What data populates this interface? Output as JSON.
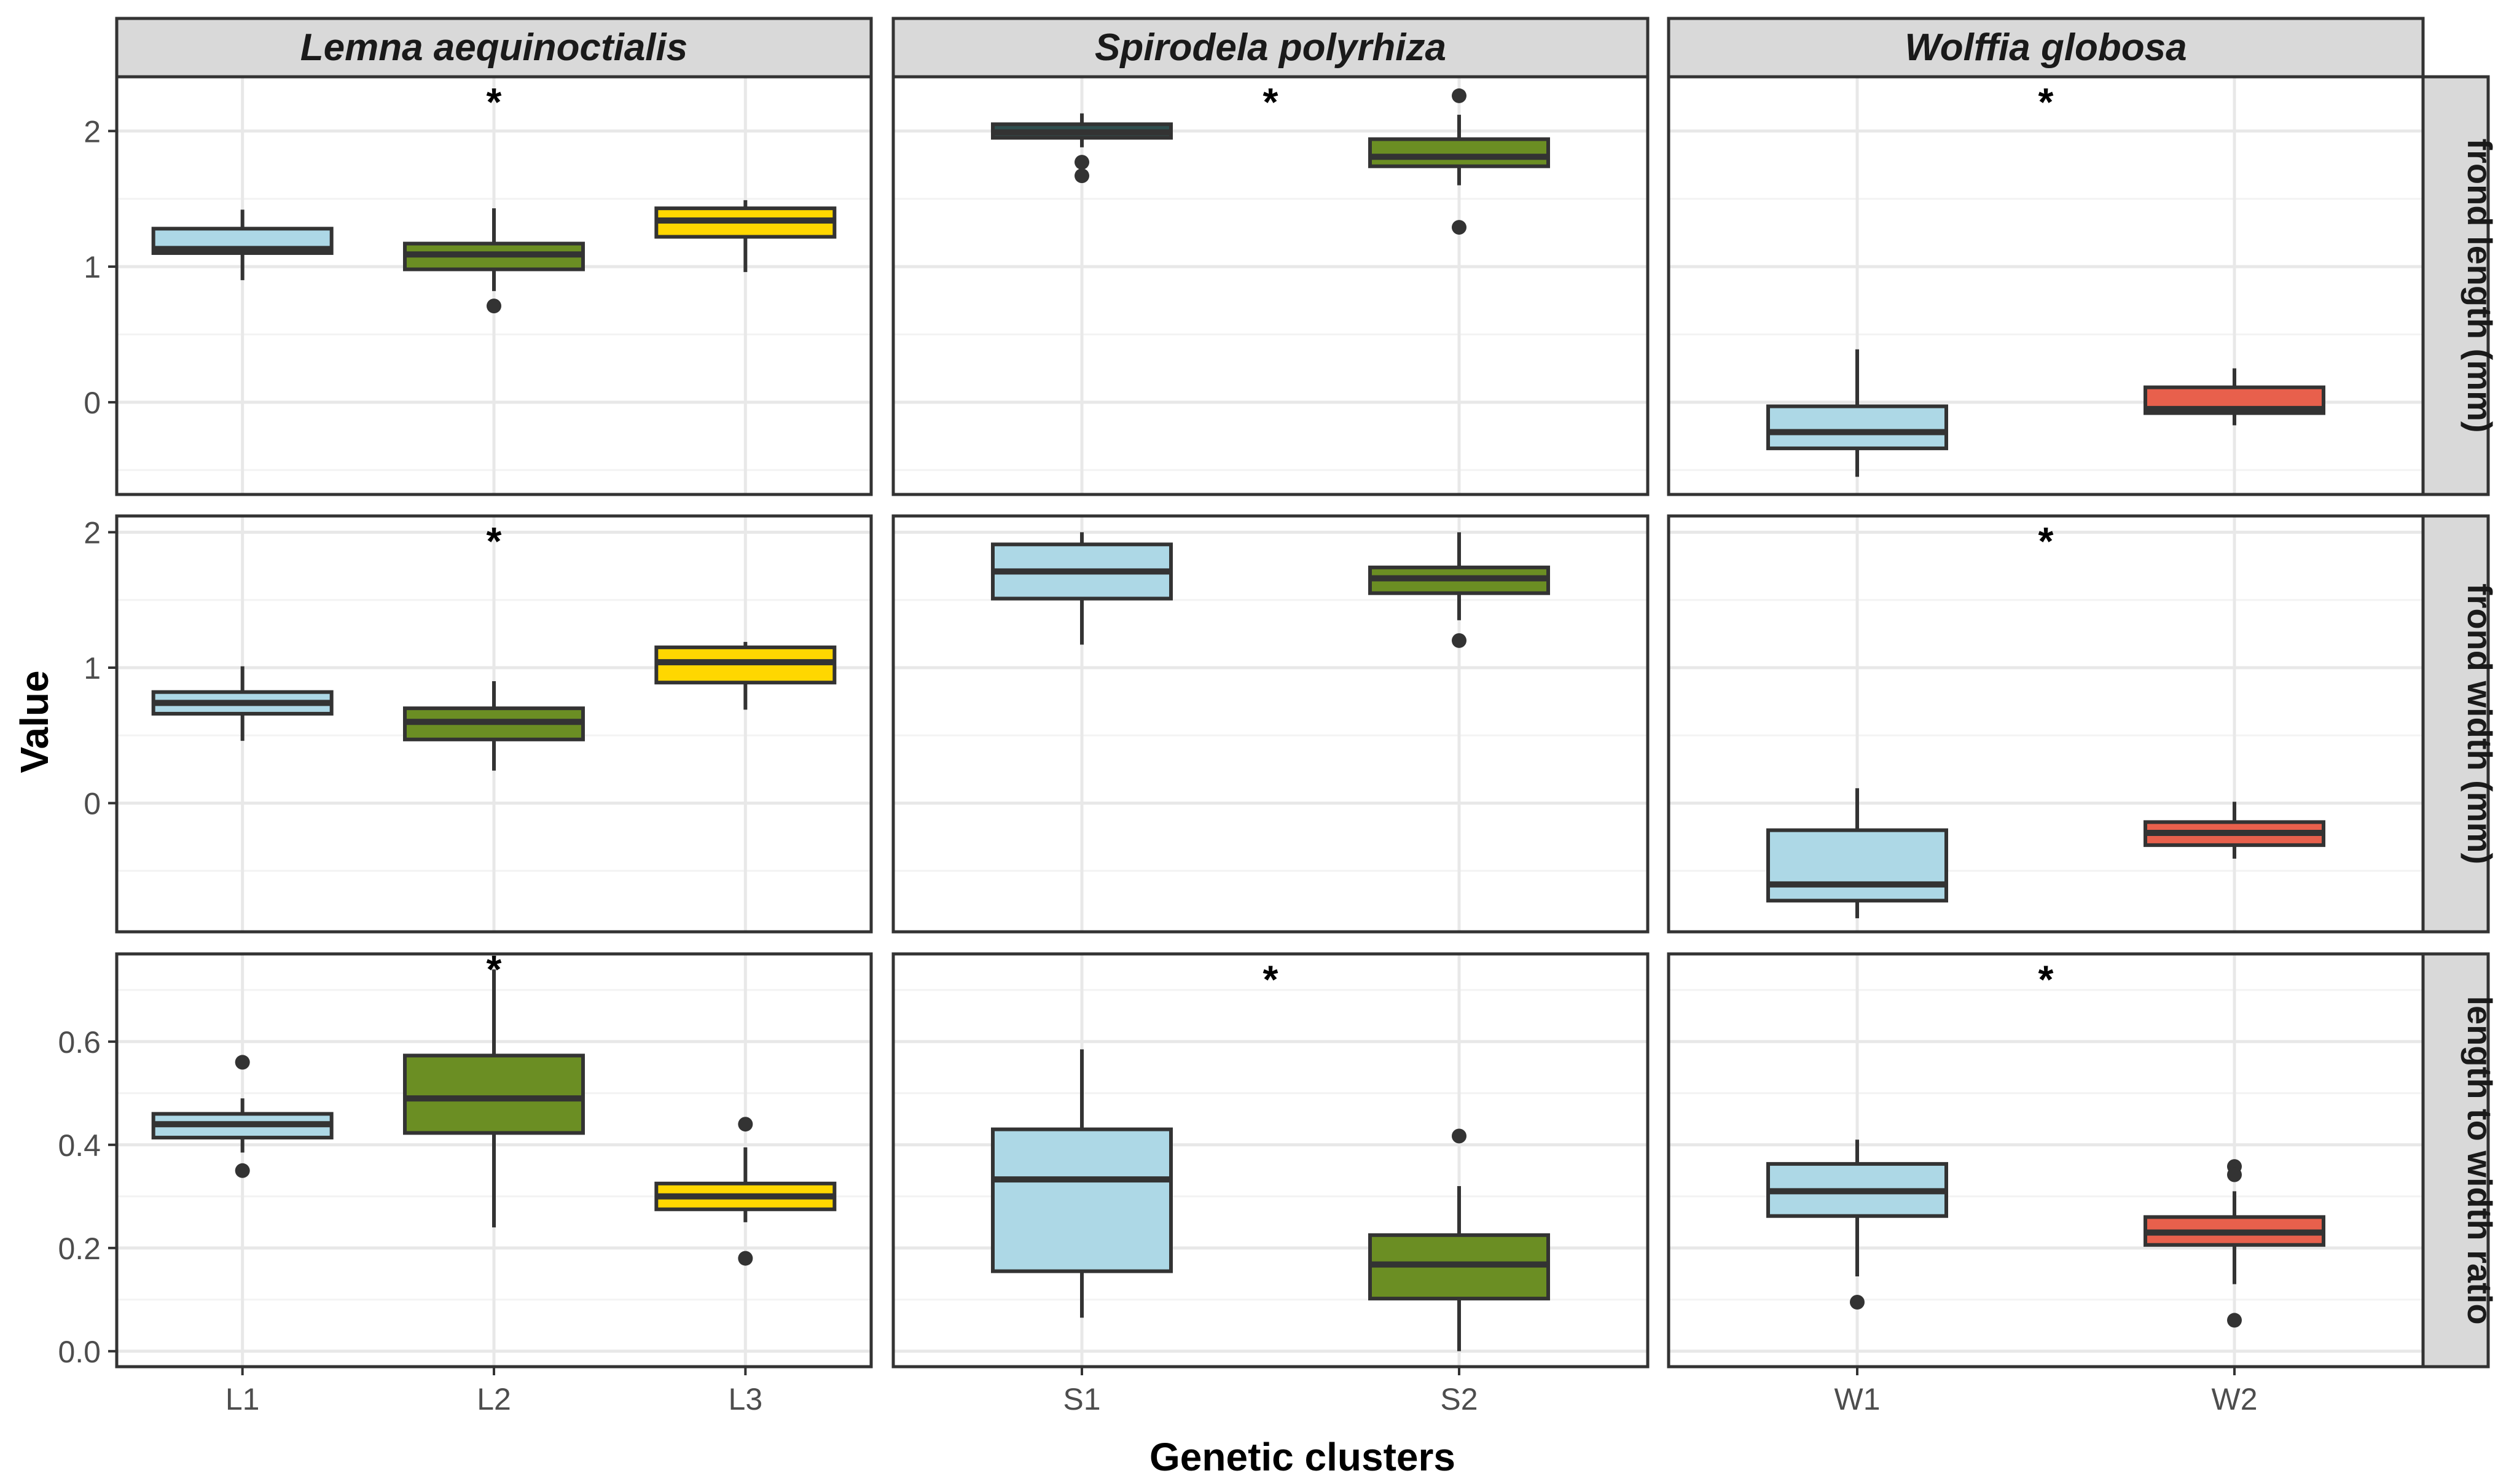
{
  "chart_data": {
    "type": "boxplot",
    "xlabel": "Genetic clusters",
    "ylabel": "Value",
    "species": [
      {
        "name": "Lemna aequinoctialis",
        "clusters": [
          "L1",
          "L2",
          "L3"
        ],
        "significant_marker": "*"
      },
      {
        "name": "Spirodela polyrhiza",
        "clusters": [
          "S1",
          "S2"
        ],
        "significant_marker": "*"
      },
      {
        "name": "Wolffia globosa",
        "clusters": [
          "W1",
          "W2"
        ],
        "significant_marker": "*"
      }
    ],
    "traits": [
      {
        "name": "frond length (mm)",
        "ylim": [
          -0.68,
          2.4
        ],
        "ticks": [
          0,
          1,
          2
        ],
        "tick_labels": [
          "0",
          "1",
          "2"
        ]
      },
      {
        "name": "frond width (mm)",
        "ylim": [
          -0.95,
          2.12
        ],
        "ticks": [
          0,
          1,
          2
        ],
        "tick_labels": [
          "0",
          "1",
          "2"
        ]
      },
      {
        "name": "length to width ratio",
        "ylim": [
          -0.03,
          0.77
        ],
        "ticks": [
          0.0,
          0.2,
          0.4,
          0.6
        ],
        "tick_labels": [
          "0.0",
          "0.2",
          "0.4",
          "0.6"
        ]
      }
    ],
    "colors": {
      "L1": "#add8e6",
      "L2": "#6b8e23",
      "L3": "#ffd700",
      "S1": "#add8e6",
      "S2": "#6b8e23",
      "W1": "#add8e6",
      "W2": "#e8604c",
      "S1_length": "#2f4f4f"
    },
    "panels": [
      {
        "trait": "frond length (mm)",
        "species": "Lemna aequinoctialis",
        "star": "*",
        "star_y": 2.25,
        "boxes": [
          {
            "cluster": "L1",
            "whisker_low": 0.9,
            "q1": 1.1,
            "median": 1.13,
            "q3": 1.28,
            "whisker_high": 1.42,
            "outliers": []
          },
          {
            "cluster": "L2",
            "whisker_low": 0.82,
            "q1": 0.98,
            "median": 1.09,
            "q3": 1.17,
            "whisker_high": 1.43,
            "outliers": [
              0.71
            ]
          },
          {
            "cluster": "L3",
            "whisker_low": 0.96,
            "q1": 1.22,
            "median": 1.34,
            "q3": 1.43,
            "whisker_high": 1.49,
            "outliers": []
          }
        ]
      },
      {
        "trait": "frond length (mm)",
        "species": "Spirodela polyrhiza",
        "star": "*",
        "star_y": 2.25,
        "boxes": [
          {
            "cluster": "S1",
            "whisker_low": 1.88,
            "q1": 1.95,
            "median": 1.99,
            "q3": 2.05,
            "whisker_high": 2.13,
            "outliers": [
              1.77,
              1.67
            ]
          },
          {
            "cluster": "S2",
            "whisker_low": 1.6,
            "q1": 1.74,
            "median": 1.81,
            "q3": 1.94,
            "whisker_high": 2.12,
            "outliers": [
              2.26,
              1.29
            ]
          }
        ]
      },
      {
        "trait": "frond length (mm)",
        "species": "Wolffia globosa",
        "star": "*",
        "star_y": 2.25,
        "boxes": [
          {
            "cluster": "W1",
            "whisker_low": -0.55,
            "q1": -0.34,
            "median": -0.22,
            "q3": -0.03,
            "whisker_high": 0.39,
            "outliers": []
          },
          {
            "cluster": "W2",
            "whisker_low": -0.17,
            "q1": -0.08,
            "median": -0.05,
            "q3": 0.11,
            "whisker_high": 0.25,
            "outliers": []
          }
        ]
      },
      {
        "trait": "frond width (mm)",
        "species": "Lemna aequinoctialis",
        "star": "*",
        "star_y": 1.97,
        "boxes": [
          {
            "cluster": "L1",
            "whisker_low": 0.46,
            "q1": 0.66,
            "median": 0.74,
            "q3": 0.82,
            "whisker_high": 1.01,
            "outliers": []
          },
          {
            "cluster": "L2",
            "whisker_low": 0.24,
            "q1": 0.47,
            "median": 0.6,
            "q3": 0.7,
            "whisker_high": 0.9,
            "outliers": []
          },
          {
            "cluster": "L3",
            "whisker_low": 0.69,
            "q1": 0.89,
            "median": 1.04,
            "q3": 1.15,
            "whisker_high": 1.19,
            "outliers": []
          }
        ]
      },
      {
        "trait": "frond width (mm)",
        "species": "Spirodela polyrhiza",
        "star": "",
        "star_y": 1.97,
        "boxes": [
          {
            "cluster": "S1",
            "whisker_low": 1.17,
            "q1": 1.51,
            "median": 1.71,
            "q3": 1.91,
            "whisker_high": 2.0,
            "outliers": []
          },
          {
            "cluster": "S2",
            "whisker_low": 1.35,
            "q1": 1.55,
            "median": 1.66,
            "q3": 1.74,
            "whisker_high": 2.0,
            "outliers": [
              1.2
            ]
          }
        ]
      },
      {
        "trait": "frond width (mm)",
        "species": "Wolffia globosa",
        "star": "*",
        "star_y": 1.97,
        "boxes": [
          {
            "cluster": "W1",
            "whisker_low": -0.85,
            "q1": -0.72,
            "median": -0.6,
            "q3": -0.2,
            "whisker_high": 0.11,
            "outliers": []
          },
          {
            "cluster": "W2",
            "whisker_low": -0.41,
            "q1": -0.31,
            "median": -0.22,
            "q3": -0.14,
            "whisker_high": 0.01,
            "outliers": []
          }
        ]
      },
      {
        "trait": "length to width ratio",
        "species": "Lemna aequinoctialis",
        "star": "*",
        "star_y": 0.75,
        "boxes": [
          {
            "cluster": "L1",
            "whisker_low": 0.385,
            "q1": 0.414,
            "median": 0.44,
            "q3": 0.46,
            "whisker_high": 0.49,
            "outliers": [
              0.56,
              0.35
            ]
          },
          {
            "cluster": "L2",
            "whisker_low": 0.24,
            "q1": 0.423,
            "median": 0.49,
            "q3": 0.573,
            "whisker_high": 0.74,
            "outliers": []
          },
          {
            "cluster": "L3",
            "whisker_low": 0.25,
            "q1": 0.275,
            "median": 0.3,
            "q3": 0.325,
            "whisker_high": 0.395,
            "outliers": [
              0.44,
              0.18
            ]
          }
        ]
      },
      {
        "trait": "length to width ratio",
        "species": "Spirodela polyrhiza",
        "star": "*",
        "star_y": 0.73,
        "boxes": [
          {
            "cluster": "S1",
            "whisker_low": 0.065,
            "q1": 0.155,
            "median": 0.333,
            "q3": 0.43,
            "whisker_high": 0.585,
            "outliers": []
          },
          {
            "cluster": "S2",
            "whisker_low": 0.0,
            "q1": 0.102,
            "median": 0.168,
            "q3": 0.225,
            "whisker_high": 0.32,
            "outliers": [
              0.417
            ]
          }
        ]
      },
      {
        "trait": "length to width ratio",
        "species": "Wolffia globosa",
        "star": "*",
        "star_y": 0.73,
        "boxes": [
          {
            "cluster": "W1",
            "whisker_low": 0.145,
            "q1": 0.262,
            "median": 0.31,
            "q3": 0.363,
            "whisker_high": 0.41,
            "outliers": [
              0.095
            ]
          },
          {
            "cluster": "W2",
            "whisker_low": 0.13,
            "q1": 0.206,
            "median": 0.23,
            "q3": 0.26,
            "whisker_high": 0.31,
            "outliers": [
              0.358,
              0.342,
              0.06
            ]
          }
        ]
      }
    ]
  }
}
